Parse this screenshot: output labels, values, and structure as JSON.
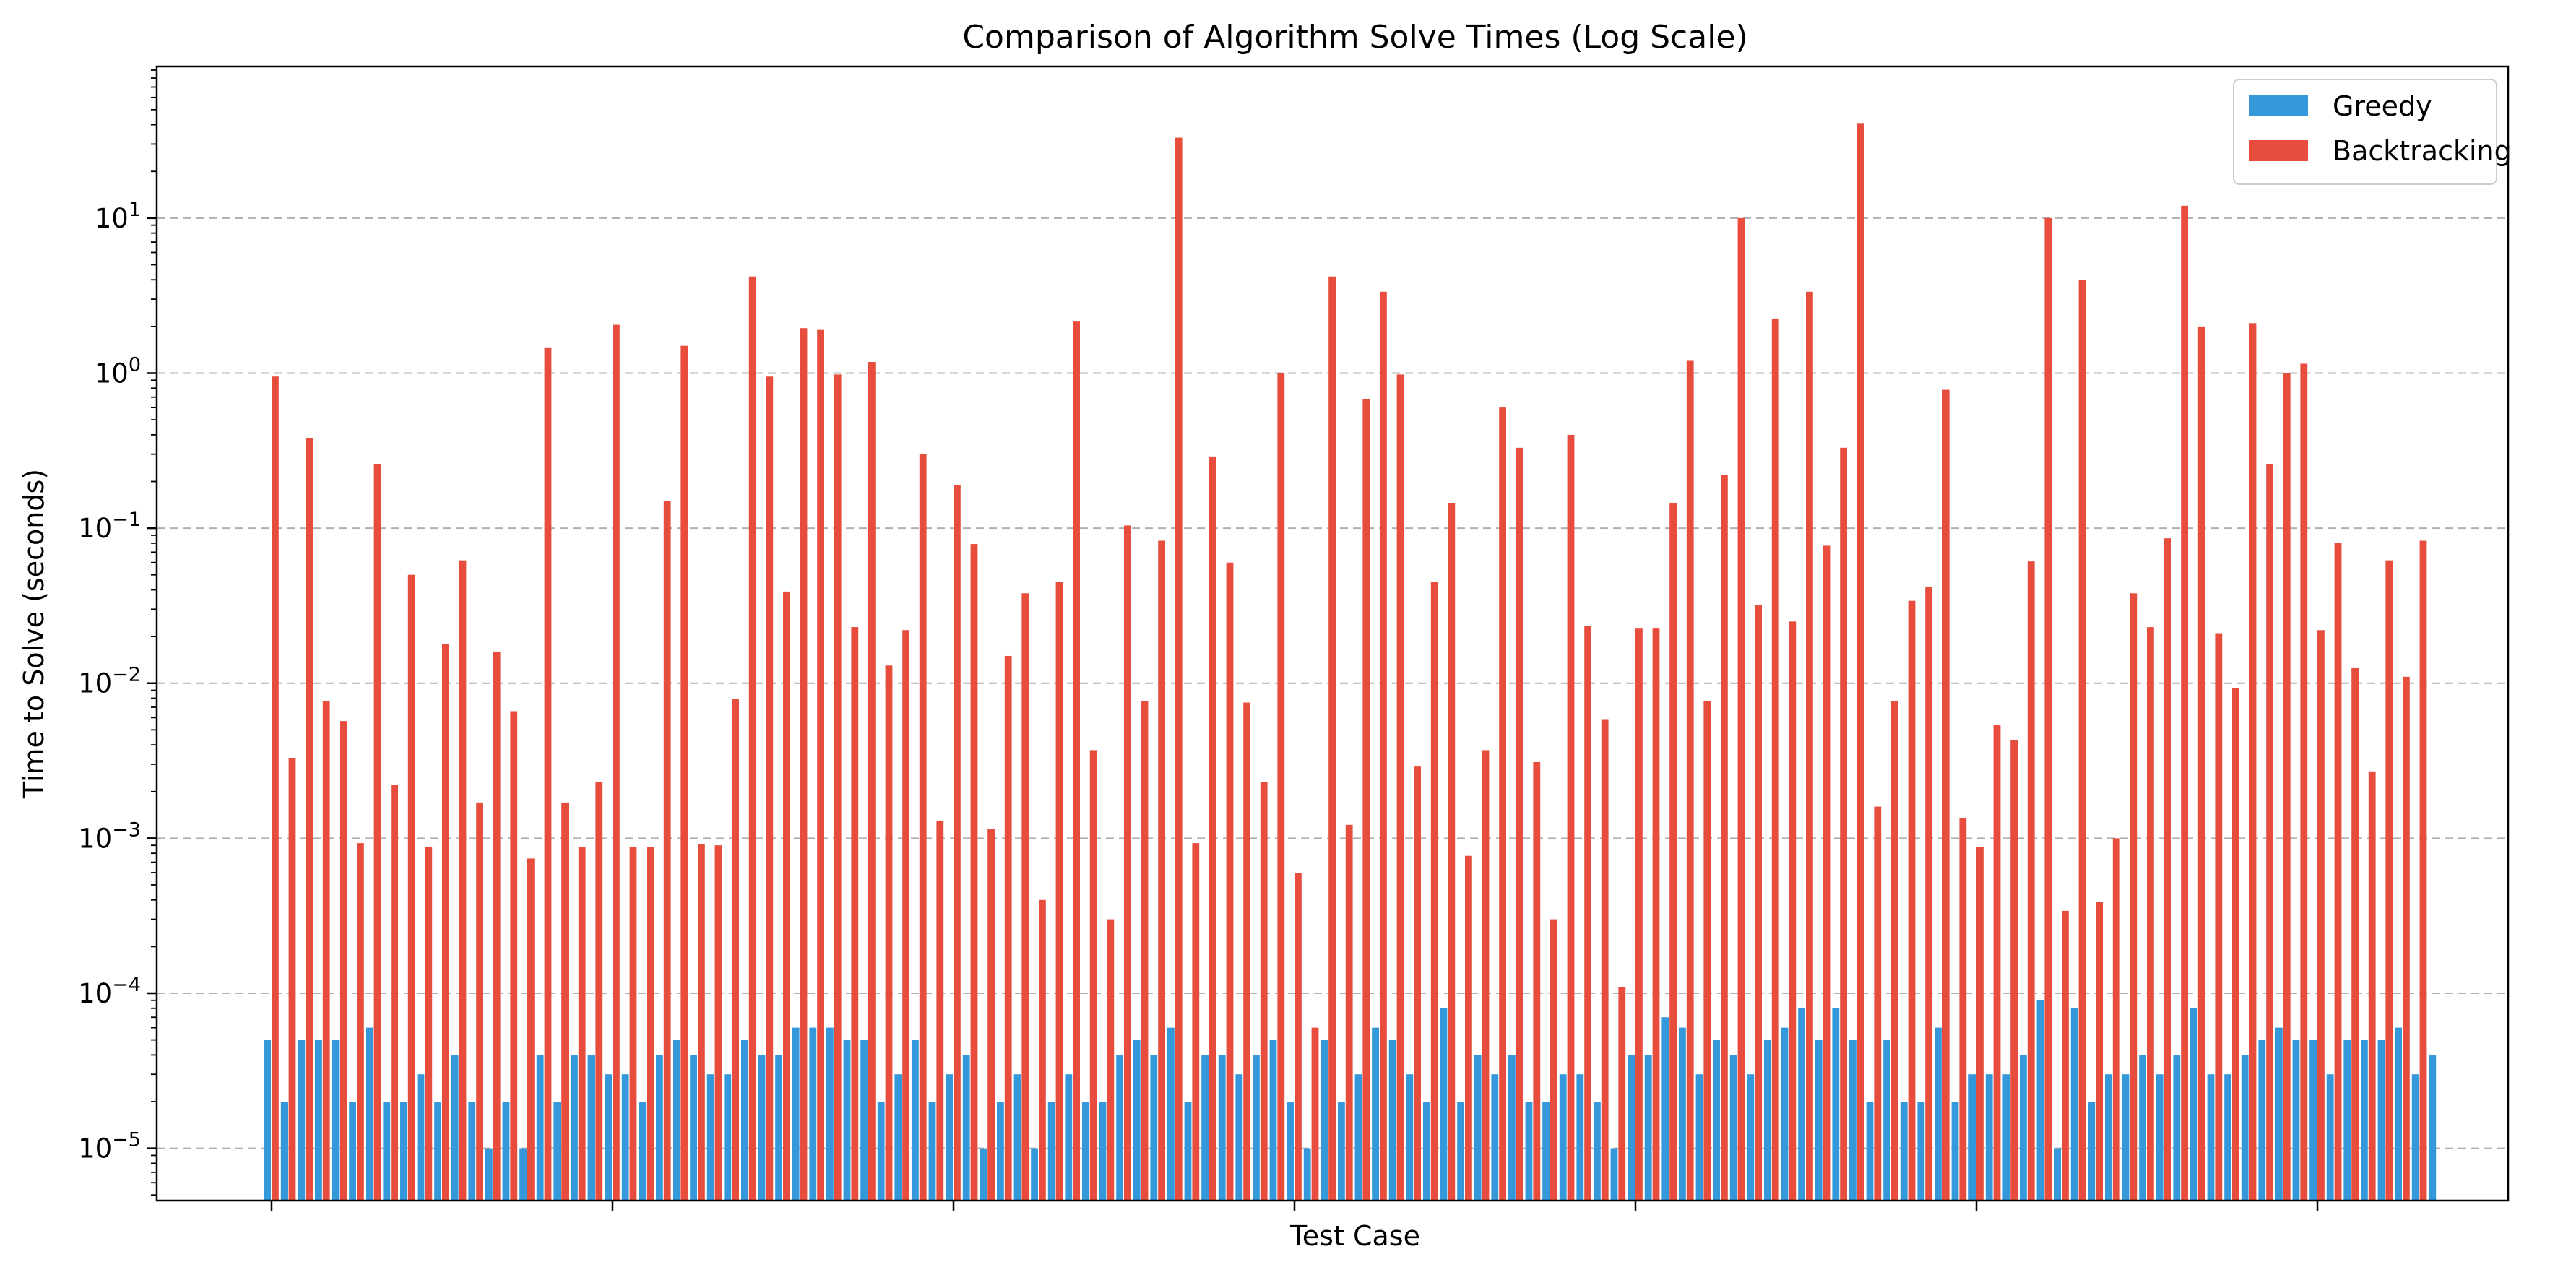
{
  "chart_data": {
    "type": "bar",
    "title": "Comparison of Algorithm Solve Times (Log Scale)",
    "xlabel": "Test Case",
    "ylabel": "Time to Solve (seconds)",
    "yscale": "log",
    "ylim": [
      4.6e-06,
      95
    ],
    "grid": "y-major-dashed",
    "legend_position": "top-right",
    "y_tick_labels": [
      {
        "value": 1e-05,
        "base": "10",
        "exp": "−5"
      },
      {
        "value": 0.0001,
        "base": "10",
        "exp": "−4"
      },
      {
        "value": 0.001,
        "base": "10",
        "exp": "−3"
      },
      {
        "value": 0.01,
        "base": "10",
        "exp": "−2"
      },
      {
        "value": 0.1,
        "base": "10",
        "exp": "−1"
      },
      {
        "value": 1,
        "base": "10",
        "exp": "0"
      },
      {
        "value": 10,
        "base": "10",
        "exp": "1"
      }
    ],
    "x_ticks": [
      0,
      20,
      40,
      60,
      80,
      100,
      120
    ],
    "series": [
      {
        "name": "Greedy",
        "color": "#3498db",
        "values": [
          5e-05,
          2e-05,
          5e-05,
          5e-05,
          5e-05,
          2e-05,
          6e-05,
          2e-05,
          2e-05,
          3e-05,
          2e-05,
          4e-05,
          2e-05,
          1e-05,
          2e-05,
          1e-05,
          4e-05,
          2e-05,
          4e-05,
          4e-05,
          3e-05,
          3e-05,
          2e-05,
          4e-05,
          5e-05,
          4e-05,
          3e-05,
          3e-05,
          5e-05,
          4e-05,
          4e-05,
          6e-05,
          6e-05,
          6e-05,
          5e-05,
          5e-05,
          2e-05,
          3e-05,
          5e-05,
          2e-05,
          3e-05,
          4e-05,
          1e-05,
          2e-05,
          3e-05,
          1e-05,
          2e-05,
          3e-05,
          2e-05,
          2e-05,
          4e-05,
          5e-05,
          4e-05,
          6e-05,
          2e-05,
          4e-05,
          4e-05,
          3e-05,
          4e-05,
          5e-05,
          2e-05,
          1e-05,
          5e-05,
          2e-05,
          3e-05,
          6e-05,
          5e-05,
          3e-05,
          2e-05,
          8e-05,
          2e-05,
          4e-05,
          3e-05,
          4e-05,
          2e-05,
          2e-05,
          3e-05,
          3e-05,
          2e-05,
          1e-05,
          4e-05,
          4e-05,
          7e-05,
          6e-05,
          3e-05,
          5e-05,
          4e-05,
          3e-05,
          5e-05,
          6e-05,
          8e-05,
          5e-05,
          8e-05,
          5e-05,
          2e-05,
          5e-05,
          2e-05,
          2e-05,
          6e-05,
          2e-05,
          3e-05,
          3e-05,
          3e-05,
          4e-05,
          9e-05,
          1e-05,
          8e-05,
          2e-05,
          3e-05,
          3e-05,
          4e-05,
          3e-05,
          4e-05,
          8e-05,
          3e-05,
          3e-05,
          4e-05,
          5e-05,
          6e-05,
          5e-05,
          5e-05,
          3e-05,
          5e-05,
          5e-05,
          5e-05,
          6e-05,
          3e-05,
          4e-05
        ]
      },
      {
        "name": "Backtracking",
        "color": "#e74c3c",
        "values": [
          0.95,
          0.0033,
          0.38,
          0.0077,
          0.0057,
          0.00093,
          0.26,
          0.0022,
          0.05,
          0.00088,
          0.018,
          0.062,
          0.0017,
          0.016,
          0.0066,
          0.00074,
          1.45,
          0.0017,
          0.00088,
          0.0023,
          2.05,
          0.00088,
          0.00088,
          0.15,
          1.5,
          0.00092,
          0.0009,
          0.0079,
          4.2,
          0.95,
          0.039,
          1.95,
          1.9,
          0.98,
          0.023,
          1.18,
          0.013,
          0.022,
          0.3,
          0.0013,
          0.19,
          0.079,
          0.00115,
          0.015,
          0.038,
          0.0004,
          0.045,
          2.15,
          0.0037,
          0.0003,
          0.104,
          0.0077,
          0.083,
          33,
          0.00093,
          0.29,
          0.06,
          0.0075,
          0.0023,
          1.0,
          0.0006,
          6e-05,
          4.2,
          0.00122,
          0.68,
          3.35,
          0.98,
          0.0029,
          0.045,
          0.145,
          0.00077,
          0.0037,
          0.6,
          0.33,
          0.0031,
          0.0003,
          0.4,
          0.0235,
          0.0058,
          0.00011,
          0.0225,
          0.0225,
          0.145,
          1.2,
          0.0077,
          0.22,
          10,
          0.032,
          2.25,
          0.025,
          3.35,
          0.077,
          0.33,
          41,
          0.0016,
          0.0077,
          0.034,
          0.042,
          0.78,
          0.00135,
          0.00088,
          0.0054,
          0.0043,
          0.061,
          10,
          0.00034,
          4.0,
          0.00039,
          0.001,
          0.038,
          0.023,
          0.086,
          12,
          2.0,
          0.021,
          0.0093,
          2.1,
          0.26,
          1.0,
          1.15,
          0.022,
          0.08,
          0.0125,
          0.0027,
          0.062,
          0.011,
          0.083
        ]
      }
    ]
  }
}
